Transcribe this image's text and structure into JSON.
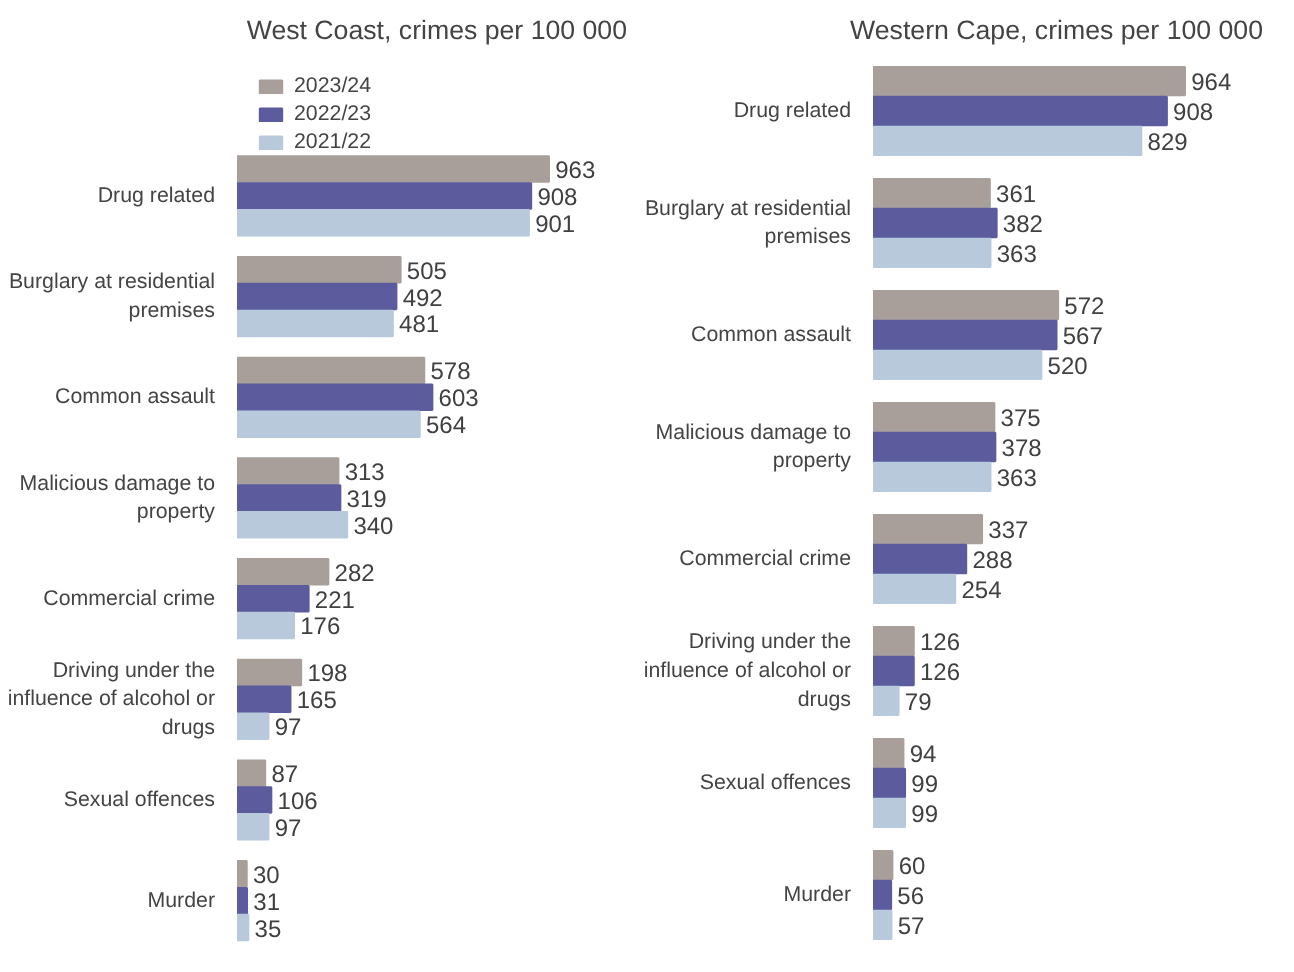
{
  "chart_data": [
    {
      "type": "bar",
      "orientation": "horizontal",
      "title": "West Coast, crimes per 100 000",
      "categories": [
        "Drug related",
        "Burglary at residential premises",
        "Common assault",
        "Malicious damage to property",
        "Commercial crime",
        "Driving under the influence of alcohol or drugs",
        "Sexual offences",
        "Murder"
      ],
      "series": [
        {
          "name": "2023/24",
          "color": "#a89f9a",
          "values": [
            963,
            505,
            578,
            313,
            282,
            198,
            87,
            30
          ]
        },
        {
          "name": "2022/23",
          "color": "#5b5b9e",
          "values": [
            908,
            492,
            603,
            319,
            221,
            165,
            106,
            31
          ]
        },
        {
          "name": "2021/22",
          "color": "#b8c9dc",
          "values": [
            901,
            481,
            564,
            340,
            176,
            97,
            97,
            35
          ]
        }
      ],
      "data_labels": true,
      "legend": "top left",
      "tick_labels": "y",
      "grid": false
    },
    {
      "type": "bar",
      "orientation": "horizontal",
      "title": "Western Cape, crimes per 100 000",
      "categories": [
        "Drug related",
        "Burglary at residential premises",
        "Common assault",
        "Malicious damage to property",
        "Commercial crime",
        "Driving under the influence of alcohol or drugs",
        "Sexual offences",
        "Murder"
      ],
      "series": [
        {
          "color": "#a89f9a",
          "values": [
            964,
            361,
            572,
            375,
            337,
            126,
            94,
            60
          ]
        },
        {
          "color": "#5b5b9e",
          "values": [
            908,
            382,
            567,
            378,
            288,
            126,
            99,
            56
          ]
        },
        {
          "color": "#b8c9dc",
          "values": [
            829,
            363,
            520,
            363,
            254,
            79,
            99,
            57
          ]
        }
      ],
      "data_labels": true,
      "tick_labels": "y",
      "grid": false
    }
  ]
}
